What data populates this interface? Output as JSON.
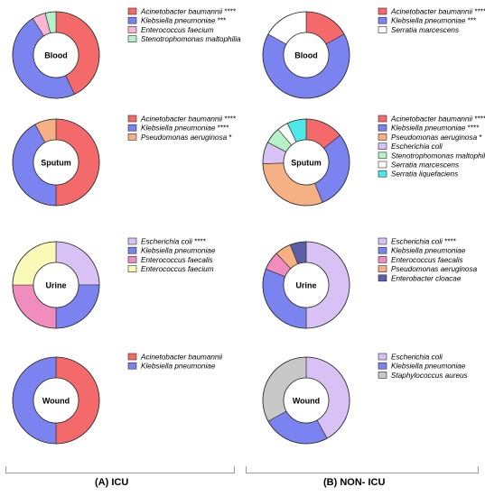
{
  "panels": [
    {
      "label": "(A) ICU"
    },
    {
      "label": "(B) NON- ICU"
    }
  ],
  "chart_data": [
    {
      "type": "pie",
      "panel": "(A) ICU",
      "center_label": "Blood",
      "slices": [
        {
          "name": "Acinetobacter baumannii",
          "mark": "****",
          "value": 43,
          "color": "#f46a6a"
        },
        {
          "name": "Klebsiella pneumoniae",
          "mark": "***",
          "value": 48,
          "color": "#7b83f0"
        },
        {
          "name": "Enterococcus faecium",
          "mark": "",
          "value": 5,
          "color": "#f7b7d2"
        },
        {
          "name": "Stenotrophomonas maltophilia",
          "mark": "",
          "value": 4,
          "color": "#b6f2c8"
        }
      ]
    },
    {
      "type": "pie",
      "panel": "(B) NON- ICU",
      "center_label": "Blood",
      "slices": [
        {
          "name": "Acinetobacter baumannii",
          "mark": "****",
          "value": 17,
          "color": "#f46a6a"
        },
        {
          "name": "Klebsiella pneumoniae",
          "mark": "***",
          "value": 66,
          "color": "#7b83f0"
        },
        {
          "name": "Serratia marcescens",
          "mark": "",
          "value": 17,
          "color": "#ffffff"
        }
      ]
    },
    {
      "type": "pie",
      "panel": "(A) ICU",
      "center_label": "Sputum",
      "slices": [
        {
          "name": "Acinetobacter baumannii",
          "mark": "****",
          "value": 50,
          "color": "#f46a6a"
        },
        {
          "name": "Klebsiella pneumoniae",
          "mark": "****",
          "value": 42,
          "color": "#7b83f0"
        },
        {
          "name": "Pseudomonas aeruginosa",
          "mark": "*",
          "value": 8,
          "color": "#f5b184"
        }
      ]
    },
    {
      "type": "pie",
      "panel": "(B) NON- ICU",
      "center_label": "Sputum",
      "slices": [
        {
          "name": "Acinetobacter baumannii",
          "mark": "****",
          "value": 14,
          "color": "#f46a6a"
        },
        {
          "name": "Klebsiella pneumoniae",
          "mark": "****",
          "value": 29,
          "color": "#7b83f0"
        },
        {
          "name": "Pseudomonas aeruginosa",
          "mark": "*",
          "value": 30,
          "color": "#f5b184"
        },
        {
          "name": "Escherichia coli",
          "mark": "",
          "value": 8,
          "color": "#d8c2f5"
        },
        {
          "name": "Stenotrophomonas maltophilia",
          "mark": "",
          "value": 6,
          "color": "#b6f2c8"
        },
        {
          "name": "Serratia marcescens",
          "mark": "",
          "value": 4,
          "color": "#ffffff"
        },
        {
          "name": "Serratia liquefaciens",
          "mark": "",
          "value": 7,
          "color": "#4ee8e8"
        }
      ]
    },
    {
      "type": "pie",
      "panel": "(A) ICU",
      "center_label": "Urine",
      "slices": [
        {
          "name": "Escherichia coli",
          "mark": "****",
          "value": 25,
          "color": "#d8c2f5"
        },
        {
          "name": "Klebsiella pneumoniae",
          "mark": "",
          "value": 25,
          "color": "#7b83f0"
        },
        {
          "name": "Enterococcus faecalis",
          "mark": "",
          "value": 25,
          "color": "#f08cbe"
        },
        {
          "name": "Enterococcus faecium",
          "mark": "",
          "value": 25,
          "color": "#fafab8"
        }
      ]
    },
    {
      "type": "pie",
      "panel": "(B) NON- ICU",
      "center_label": "Urine",
      "slices": [
        {
          "name": "Escherichia coli",
          "mark": "****",
          "value": 50,
          "color": "#d8c2f5"
        },
        {
          "name": "Klebsiella pneumoniae",
          "mark": "",
          "value": 31,
          "color": "#7b83f0"
        },
        {
          "name": "Enterococcus faecalis",
          "mark": "",
          "value": 7,
          "color": "#f08cbe"
        },
        {
          "name": "Pseudomonas aeruginosa",
          "mark": "",
          "value": 6,
          "color": "#f5b184"
        },
        {
          "name": "Enterobacter cloacae",
          "mark": "",
          "value": 6,
          "color": "#5a5fa8"
        }
      ]
    },
    {
      "type": "pie",
      "panel": "(A) ICU",
      "center_label": "Wound",
      "slices": [
        {
          "name": "Acinetobacter baumannii",
          "mark": "",
          "value": 50,
          "color": "#f46a6a"
        },
        {
          "name": "Klebsiella pneumoniae",
          "mark": "",
          "value": 50,
          "color": "#7b83f0"
        }
      ]
    },
    {
      "type": "pie",
      "panel": "(B) NON- ICU",
      "center_label": "Wound",
      "slices": [
        {
          "name": "Escherichia coli",
          "mark": "",
          "value": 42,
          "color": "#d8c2f5"
        },
        {
          "name": "Klebsiella pneumoniae",
          "mark": "",
          "value": 25,
          "color": "#7b83f0"
        },
        {
          "name": "Staphylococcus aureus",
          "mark": "",
          "value": 33,
          "color": "#c8c8c8"
        }
      ]
    }
  ]
}
